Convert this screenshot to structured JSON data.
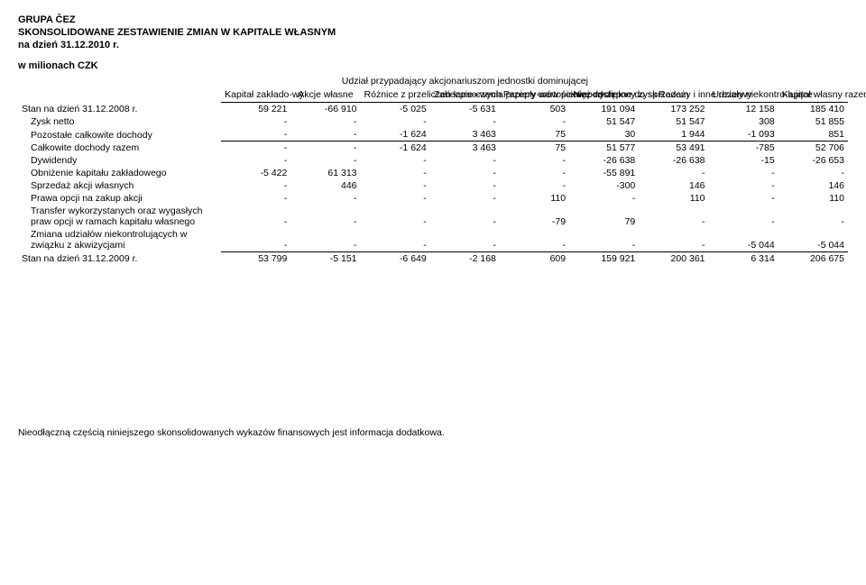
{
  "header": {
    "company": "GRUPA ČEZ",
    "title": "SKONSOLIDOWANE ZESTAWIENIE ZMIAN W KAPITALE WŁASNYM",
    "asof": "na dzień 31.12.2010 r.",
    "unit": "w milionach CZK",
    "spanner": "Udział przypadający akcjonariuszom jednostki dominującej"
  },
  "columns": [
    "Kapitał zakłado-wy",
    "Akcje własne",
    "Różnice z przeliczeń kurso-wych",
    "Zabezpie-czenia przepły-wów pienięż-nych",
    "Papiery wartościowe dostępne do sprzedaży i inne rezerwy",
    "Niepod-zielony zysk",
    "Razem",
    "Udziały niekontro-lujące",
    "Kapitał własny razem"
  ],
  "rows": {
    "open": {
      "label": "Stan na dzień 31.12.2008 r.",
      "v": [
        "59 221",
        "-66 910",
        "-5 025",
        "-5 631",
        "503",
        "191 094",
        "173 252",
        "12 158",
        "185 410"
      ]
    },
    "netto": {
      "label": "Zysk netto",
      "v": [
        "-",
        "-",
        "-",
        "-",
        "-",
        "51 547",
        "51 547",
        "308",
        "51 855"
      ]
    },
    "other": {
      "label": "Pozostałe całkowite dochody",
      "v": [
        "-",
        "-",
        "-1 624",
        "3 463",
        "75",
        "30",
        "1 944",
        "-1 093",
        "851"
      ]
    },
    "total_ci": {
      "label": "Całkowite dochody razem",
      "v": [
        "-",
        "-",
        "-1 624",
        "3 463",
        "75",
        "51 577",
        "53 491",
        "-785",
        "52 706"
      ]
    },
    "div": {
      "label": "Dywidendy",
      "v": [
        "-",
        "-",
        "-",
        "-",
        "-",
        "-26 638",
        "-26 638",
        "-15",
        "-26 653"
      ]
    },
    "dec": {
      "label": "Obniżenie kapitału zakładowego",
      "v": [
        "-5 422",
        "61 313",
        "-",
        "-",
        "-",
        "-55 891",
        "-",
        "-",
        "-"
      ]
    },
    "sale": {
      "label": "Sprzedaż akcji własnych",
      "v": [
        "-",
        "446",
        "-",
        "-",
        "-",
        "-300",
        "146",
        "-",
        "146"
      ]
    },
    "opt": {
      "label": "Prawa opcji na zakup akcji",
      "v": [
        "-",
        "-",
        "-",
        "-",
        "110",
        "-",
        "110",
        "-",
        "110"
      ]
    },
    "transfer": {
      "label": "Transfer wykorzystanych oraz wygasłych praw opcji w ramach kapitału własnego",
      "v": [
        "-",
        "-",
        "-",
        "-",
        "-79",
        "79",
        "-",
        "-",
        "-"
      ]
    },
    "nci": {
      "label": "Zmiana udziałów niekontrolujących w związku z akwizycjami",
      "v": [
        "-",
        "-",
        "-",
        "-",
        "-",
        "-",
        "-",
        "-5 044",
        "-5 044"
      ]
    },
    "close": {
      "label": "Stan na dzień 31.12.2009 r.",
      "v": [
        "53 799",
        "-5 151",
        "-6 649",
        "-2 168",
        "609",
        "159 921",
        "200 361",
        "6 314",
        "206 675"
      ]
    }
  },
  "footer": "Nieodłączną częścią niniejszego skonsolidowanych wykazów finansowych jest informacja dodatkowa."
}
